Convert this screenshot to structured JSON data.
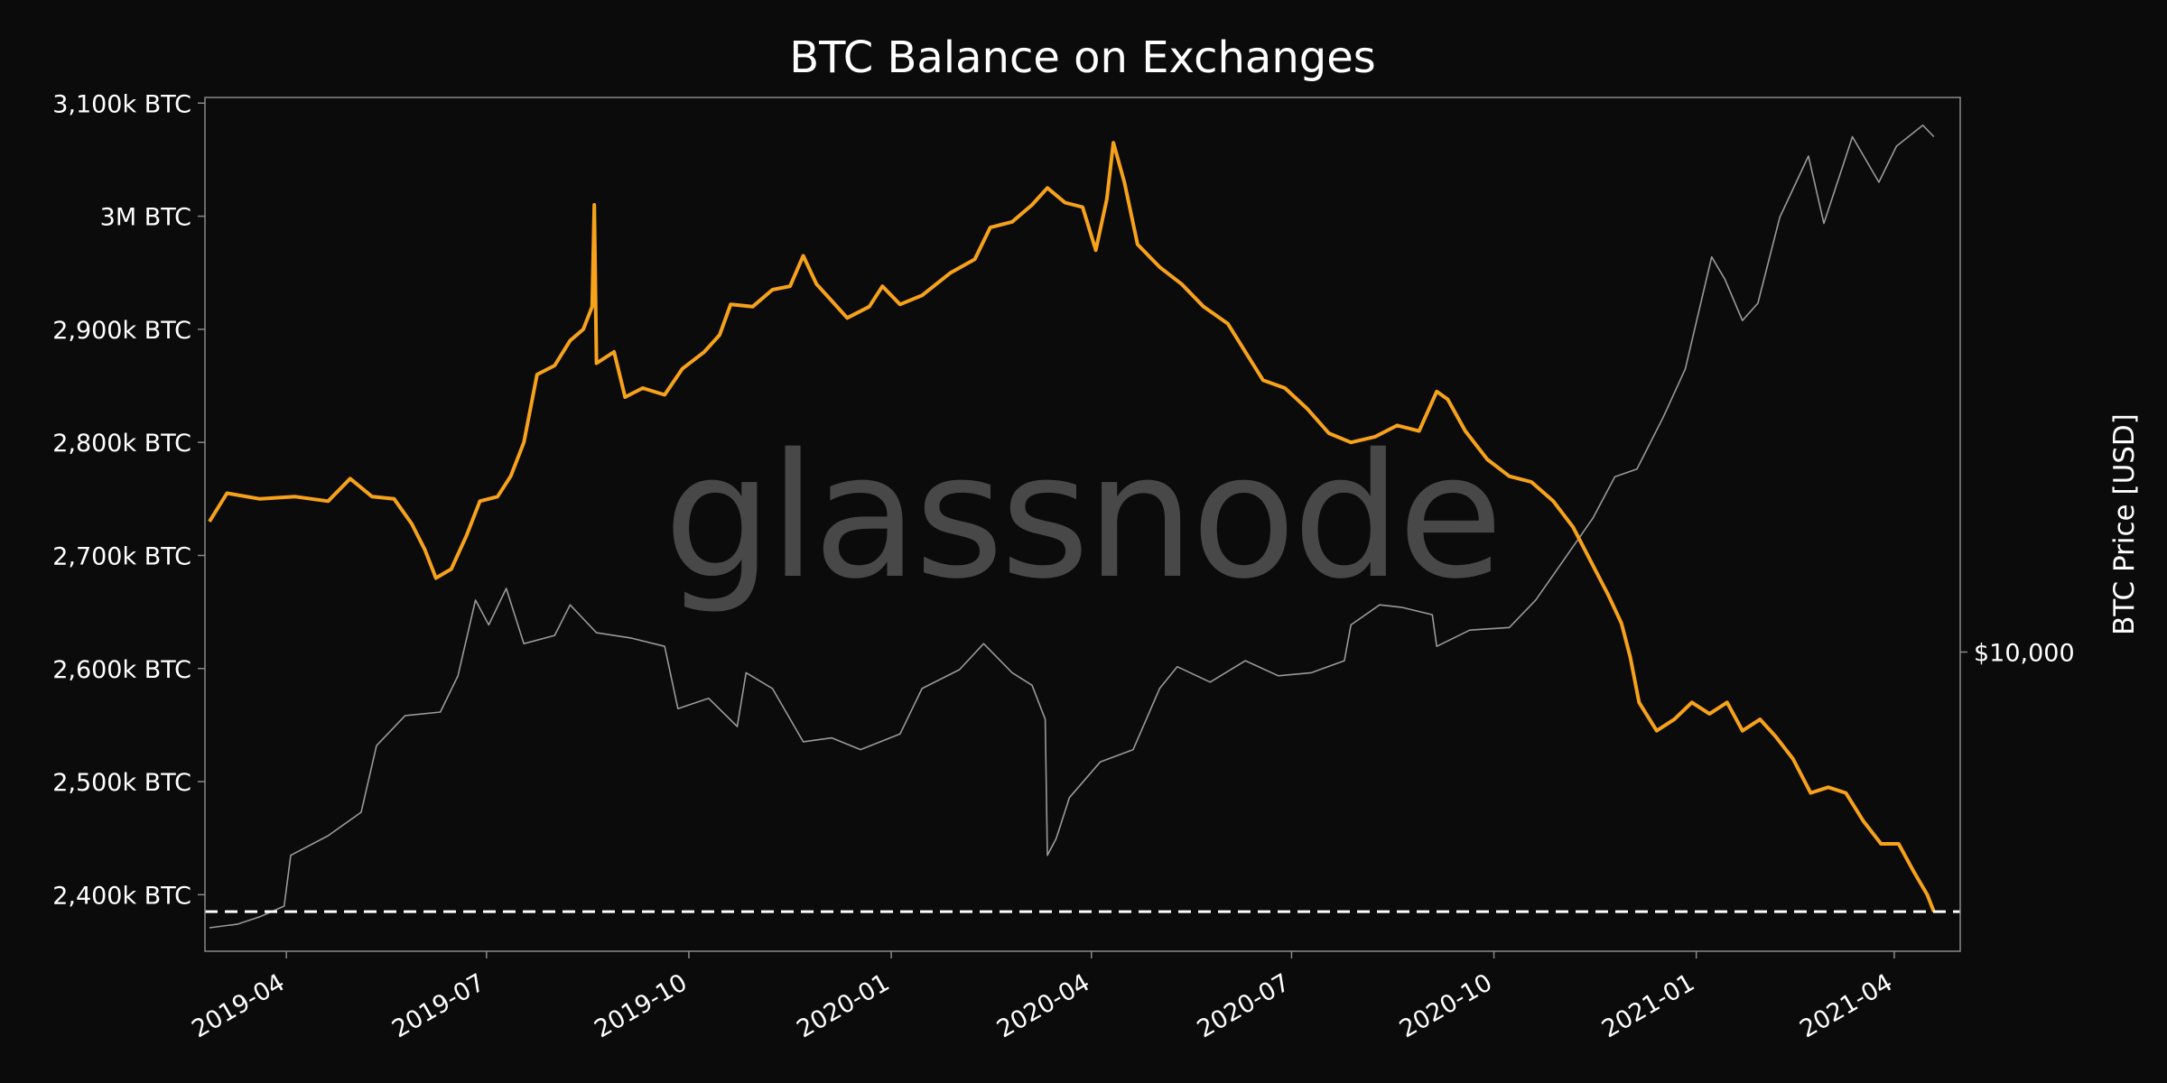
{
  "chart_data": {
    "type": "line",
    "title": "BTC Balance on Exchanges",
    "watermark": "glassnode",
    "y_right_label": "BTC Price [USD]",
    "y_right_ticks": [
      {
        "value": 10000,
        "label": "$10,000"
      }
    ],
    "y_ticks": [
      {
        "value": 2400000,
        "label": "2,400k BTC"
      },
      {
        "value": 2500000,
        "label": "2,500k BTC"
      },
      {
        "value": 2600000,
        "label": "2,600k BTC"
      },
      {
        "value": 2700000,
        "label": "2,700k BTC"
      },
      {
        "value": 2800000,
        "label": "2,800k BTC"
      },
      {
        "value": 2900000,
        "label": "2,900k BTC"
      },
      {
        "value": 3000000,
        "label": "3M BTC"
      },
      {
        "value": 3100000,
        "label": "3,100k BTC"
      }
    ],
    "x_ticks": [
      "2019-04",
      "2019-07",
      "2019-10",
      "2020-01",
      "2020-04",
      "2020-07",
      "2020-10",
      "2021-01",
      "2021-04"
    ],
    "xlim": [
      "2019-02-23",
      "2021-05-01"
    ],
    "ylim": [
      2350000,
      3105000
    ],
    "y_right_scale": "log",
    "y_right_lim": [
      3500,
      70000
    ],
    "reference_line": {
      "value": 2385000,
      "style": "dashed",
      "color": "#ffffff"
    },
    "series": [
      {
        "key": "balance",
        "color": "#f7a21b",
        "axis": "left",
        "points": [
          [
            "2019-02-25",
            2730000
          ],
          [
            "2019-03-05",
            2755000
          ],
          [
            "2019-03-20",
            2750000
          ],
          [
            "2019-04-05",
            2752000
          ],
          [
            "2019-04-20",
            2748000
          ],
          [
            "2019-04-30",
            2768000
          ],
          [
            "2019-05-10",
            2752000
          ],
          [
            "2019-05-20",
            2750000
          ],
          [
            "2019-05-28",
            2728000
          ],
          [
            "2019-06-03",
            2705000
          ],
          [
            "2019-06-08",
            2680000
          ],
          [
            "2019-06-15",
            2688000
          ],
          [
            "2019-06-22",
            2718000
          ],
          [
            "2019-06-28",
            2748000
          ],
          [
            "2019-07-06",
            2752000
          ],
          [
            "2019-07-12",
            2770000
          ],
          [
            "2019-07-18",
            2800000
          ],
          [
            "2019-07-24",
            2860000
          ],
          [
            "2019-08-01",
            2868000
          ],
          [
            "2019-08-08",
            2890000
          ],
          [
            "2019-08-14",
            2900000
          ],
          [
            "2019-08-18",
            2920000
          ],
          [
            "2019-08-19",
            3010000
          ],
          [
            "2019-08-20",
            2870000
          ],
          [
            "2019-08-28",
            2880000
          ],
          [
            "2019-09-02",
            2840000
          ],
          [
            "2019-09-10",
            2848000
          ],
          [
            "2019-09-20",
            2842000
          ],
          [
            "2019-09-28",
            2865000
          ],
          [
            "2019-10-08",
            2880000
          ],
          [
            "2019-10-15",
            2895000
          ],
          [
            "2019-10-20",
            2922000
          ],
          [
            "2019-10-30",
            2920000
          ],
          [
            "2019-11-08",
            2935000
          ],
          [
            "2019-11-16",
            2938000
          ],
          [
            "2019-11-22",
            2965000
          ],
          [
            "2019-11-28",
            2940000
          ],
          [
            "2019-12-05",
            2925000
          ],
          [
            "2019-12-12",
            2910000
          ],
          [
            "2019-12-22",
            2920000
          ],
          [
            "2019-12-28",
            2938000
          ],
          [
            "2020-01-05",
            2922000
          ],
          [
            "2020-01-15",
            2930000
          ],
          [
            "2020-01-28",
            2950000
          ],
          [
            "2020-02-08",
            2962000
          ],
          [
            "2020-02-15",
            2990000
          ],
          [
            "2020-02-25",
            2995000
          ],
          [
            "2020-03-05",
            3010000
          ],
          [
            "2020-03-12",
            3025000
          ],
          [
            "2020-03-20",
            3012000
          ],
          [
            "2020-03-28",
            3008000
          ],
          [
            "2020-04-03",
            2970000
          ],
          [
            "2020-04-08",
            3015000
          ],
          [
            "2020-04-11",
            3065000
          ],
          [
            "2020-04-16",
            3030000
          ],
          [
            "2020-04-22",
            2975000
          ],
          [
            "2020-05-02",
            2955000
          ],
          [
            "2020-05-12",
            2940000
          ],
          [
            "2020-05-22",
            2920000
          ],
          [
            "2020-06-02",
            2905000
          ],
          [
            "2020-06-10",
            2880000
          ],
          [
            "2020-06-18",
            2855000
          ],
          [
            "2020-06-28",
            2848000
          ],
          [
            "2020-07-08",
            2830000
          ],
          [
            "2020-07-18",
            2808000
          ],
          [
            "2020-07-28",
            2800000
          ],
          [
            "2020-08-08",
            2805000
          ],
          [
            "2020-08-18",
            2815000
          ],
          [
            "2020-08-28",
            2810000
          ],
          [
            "2020-09-05",
            2845000
          ],
          [
            "2020-09-10",
            2838000
          ],
          [
            "2020-09-18",
            2810000
          ],
          [
            "2020-09-28",
            2785000
          ],
          [
            "2020-10-08",
            2770000
          ],
          [
            "2020-10-18",
            2765000
          ],
          [
            "2020-10-28",
            2748000
          ],
          [
            "2020-11-06",
            2725000
          ],
          [
            "2020-11-14",
            2695000
          ],
          [
            "2020-11-22",
            2665000
          ],
          [
            "2020-11-28",
            2640000
          ],
          [
            "2020-12-02",
            2610000
          ],
          [
            "2020-12-06",
            2570000
          ],
          [
            "2020-12-14",
            2545000
          ],
          [
            "2020-12-22",
            2555000
          ],
          [
            "2020-12-30",
            2570000
          ],
          [
            "2021-01-07",
            2560000
          ],
          [
            "2021-01-15",
            2570000
          ],
          [
            "2021-01-22",
            2545000
          ],
          [
            "2021-01-30",
            2555000
          ],
          [
            "2021-02-06",
            2540000
          ],
          [
            "2021-02-14",
            2520000
          ],
          [
            "2021-02-22",
            2490000
          ],
          [
            "2021-03-02",
            2495000
          ],
          [
            "2021-03-10",
            2490000
          ],
          [
            "2021-03-18",
            2465000
          ],
          [
            "2021-03-26",
            2445000
          ],
          [
            "2021-04-03",
            2445000
          ],
          [
            "2021-04-10",
            2420000
          ],
          [
            "2021-04-16",
            2400000
          ],
          [
            "2021-04-19",
            2385000
          ]
        ]
      },
      {
        "key": "price",
        "color": "#9a9a9a",
        "axis": "right",
        "points": [
          [
            "2019-02-25",
            3800
          ],
          [
            "2019-03-10",
            3850
          ],
          [
            "2019-03-20",
            3950
          ],
          [
            "2019-03-31",
            4100
          ],
          [
            "2019-04-03",
            4900
          ],
          [
            "2019-04-20",
            5250
          ],
          [
            "2019-05-05",
            5700
          ],
          [
            "2019-05-12",
            7200
          ],
          [
            "2019-05-25",
            8000
          ],
          [
            "2019-06-10",
            8100
          ],
          [
            "2019-06-18",
            9200
          ],
          [
            "2019-06-26",
            12000
          ],
          [
            "2019-07-02",
            11000
          ],
          [
            "2019-07-10",
            12500
          ],
          [
            "2019-07-18",
            10300
          ],
          [
            "2019-08-01",
            10600
          ],
          [
            "2019-08-08",
            11800
          ],
          [
            "2019-08-20",
            10700
          ],
          [
            "2019-09-05",
            10500
          ],
          [
            "2019-09-20",
            10200
          ],
          [
            "2019-09-26",
            8200
          ],
          [
            "2019-10-10",
            8500
          ],
          [
            "2019-10-23",
            7700
          ],
          [
            "2019-10-27",
            9300
          ],
          [
            "2019-11-08",
            8800
          ],
          [
            "2019-11-22",
            7300
          ],
          [
            "2019-12-05",
            7400
          ],
          [
            "2019-12-18",
            7100
          ],
          [
            "2020-01-05",
            7500
          ],
          [
            "2020-01-15",
            8800
          ],
          [
            "2020-02-01",
            9400
          ],
          [
            "2020-02-12",
            10300
          ],
          [
            "2020-02-25",
            9300
          ],
          [
            "2020-03-05",
            8900
          ],
          [
            "2020-03-11",
            7900
          ],
          [
            "2020-03-12",
            4900
          ],
          [
            "2020-03-16",
            5200
          ],
          [
            "2020-03-22",
            6000
          ],
          [
            "2020-04-05",
            6800
          ],
          [
            "2020-04-20",
            7100
          ],
          [
            "2020-05-02",
            8800
          ],
          [
            "2020-05-10",
            9500
          ],
          [
            "2020-05-25",
            9000
          ],
          [
            "2020-06-10",
            9700
          ],
          [
            "2020-06-25",
            9200
          ],
          [
            "2020-07-10",
            9300
          ],
          [
            "2020-07-25",
            9700
          ],
          [
            "2020-07-28",
            11000
          ],
          [
            "2020-08-10",
            11800
          ],
          [
            "2020-08-20",
            11700
          ],
          [
            "2020-09-03",
            11400
          ],
          [
            "2020-09-05",
            10200
          ],
          [
            "2020-09-20",
            10800
          ],
          [
            "2020-10-08",
            10900
          ],
          [
            "2020-10-20",
            12000
          ],
          [
            "2020-11-01",
            13700
          ],
          [
            "2020-11-15",
            16000
          ],
          [
            "2020-11-25",
            18500
          ],
          [
            "2020-12-05",
            19000
          ],
          [
            "2020-12-17",
            22800
          ],
          [
            "2020-12-27",
            27000
          ],
          [
            "2021-01-08",
            40000
          ],
          [
            "2021-01-14",
            37000
          ],
          [
            "2021-01-22",
            32000
          ],
          [
            "2021-01-29",
            34000
          ],
          [
            "2021-02-08",
            46000
          ],
          [
            "2021-02-21",
            57000
          ],
          [
            "2021-02-28",
            45000
          ],
          [
            "2021-03-13",
            61000
          ],
          [
            "2021-03-25",
            52000
          ],
          [
            "2021-04-02",
            59000
          ],
          [
            "2021-04-14",
            63500
          ],
          [
            "2021-04-19",
            61000
          ]
        ]
      }
    ]
  }
}
